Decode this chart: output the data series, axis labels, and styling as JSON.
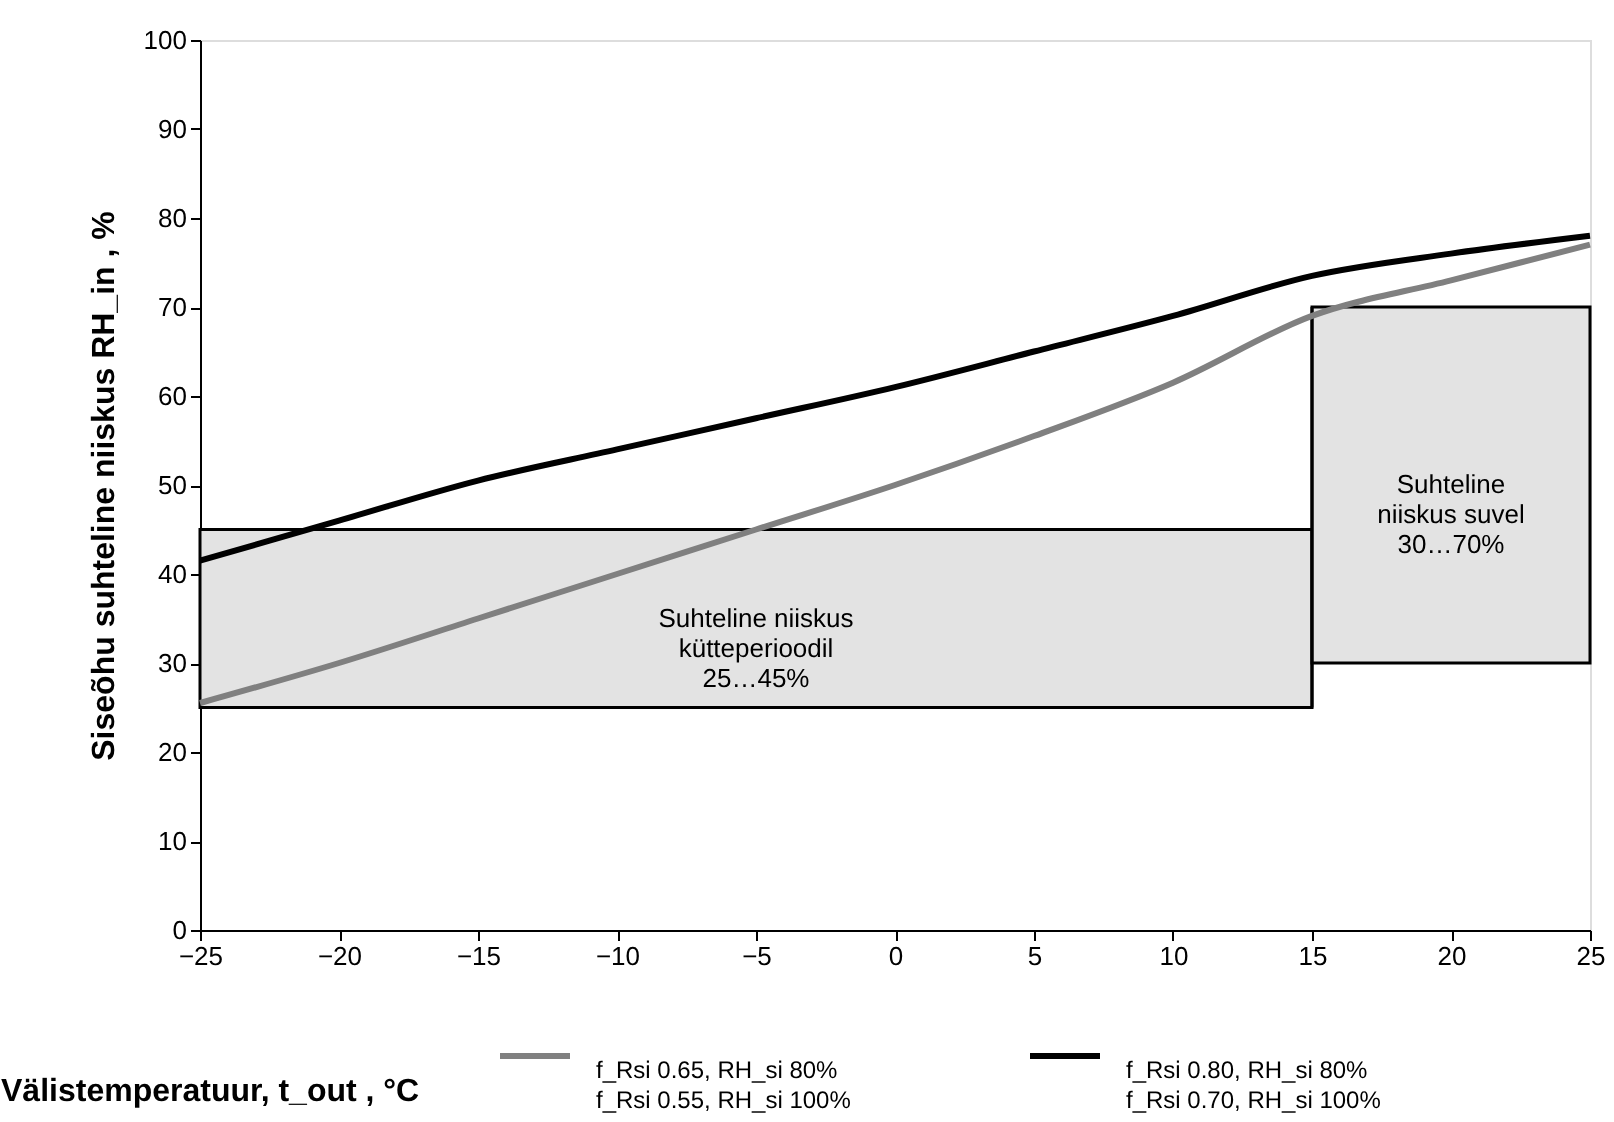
{
  "chart_data": {
    "type": "line",
    "xlabel": "Välistemperatuur, t_out , °C",
    "ylabel": "Siseõhu suhteline niiskus RH_in , %",
    "x": [
      -25,
      -20,
      -15,
      -10,
      -5,
      0,
      5,
      10,
      15,
      20,
      25
    ],
    "series": [
      {
        "name": "f_Rsi 0.65, RH_si 80%\nf_Rsi 0.55, RH_si 100%",
        "color": "#808080",
        "values": [
          25.5,
          30,
          35,
          40,
          45,
          50,
          55.5,
          61.5,
          69,
          73,
          77
        ]
      },
      {
        "name": "f_Rsi 0.80, RH_si 80%\nf_Rsi 0.70, RH_si 100%",
        "color": "#000000",
        "values": [
          41.5,
          46,
          50.5,
          54,
          57.5,
          61,
          65,
          69,
          73.5,
          76,
          78
        ]
      }
    ],
    "xlim": [
      -25,
      25
    ],
    "xticks": [
      -25,
      -20,
      -15,
      -10,
      -5,
      0,
      5,
      10,
      15,
      20,
      25
    ],
    "ylim": [
      0,
      100
    ],
    "yticks": [
      0,
      10,
      20,
      30,
      40,
      50,
      60,
      70,
      80,
      90,
      100
    ],
    "ref_lines": [
      {
        "axis": "x",
        "value": 15
      }
    ],
    "bands": [
      {
        "axis": "y",
        "from": 25,
        "to": 45,
        "color": "#e3e3e3",
        "label": "Suhteline niiskus\nkütteperioodil\n25…45%"
      },
      {
        "axis": "y",
        "from": 30,
        "to": 70,
        "color": "#e3e3e3",
        "label": "Suhteline\nniiskus suvel\n30…70%"
      }
    ],
    "grid": false,
    "legend": "bottom",
    "marker": "none",
    "line_style": "solid"
  }
}
